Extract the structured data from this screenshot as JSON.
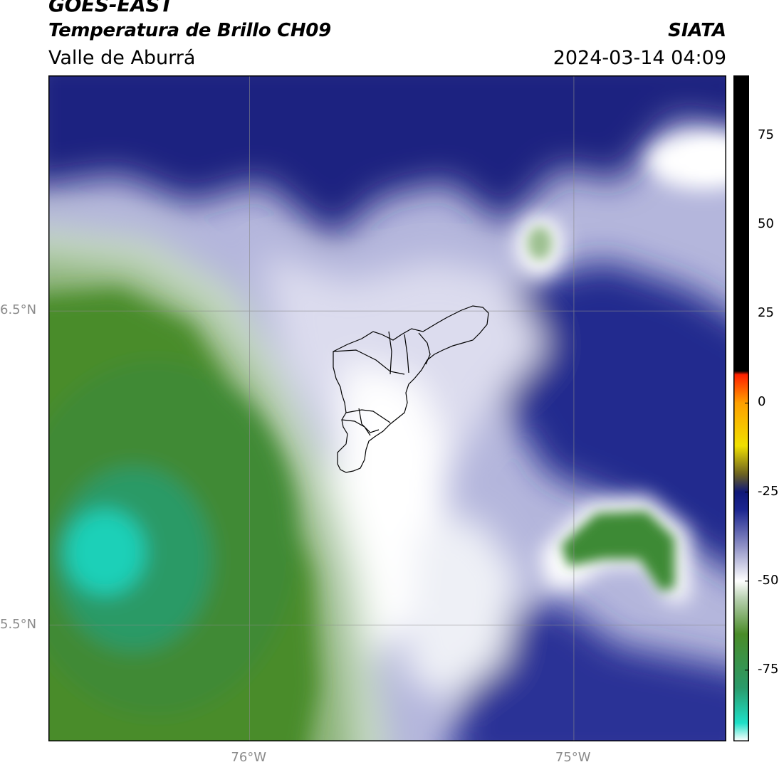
{
  "header": {
    "satellite": "GOES-EAST",
    "product": "Temperatura de Brillo CH09",
    "region": "Valle de Aburrá",
    "organization": "SIATA",
    "timestamp": "2024-03-14 04:09"
  },
  "map": {
    "gridlines": true,
    "lat_labels": [
      "6.5°N",
      "5.5°N"
    ],
    "lon_labels": [
      "76°W",
      "75°W"
    ],
    "lat_ticks": [
      6.5,
      5.5
    ],
    "lon_ticks": [
      -76,
      -75
    ],
    "lon_range": [
      -76.62,
      -74.53
    ],
    "lat_range": [
      5.13,
      7.25
    ],
    "boundary": "Valle de Aburrá municipalities outline"
  },
  "colorbar": {
    "tick_values": [
      75,
      50,
      25,
      0,
      -25,
      -50,
      -75
    ],
    "tick_labels": [
      "75",
      "50",
      "25",
      "0",
      "-25",
      "-50",
      "-75"
    ],
    "range": [
      -95,
      92
    ],
    "stops": [
      {
        "v": -95,
        "c": "#ffffff"
      },
      {
        "v": -90,
        "c": "#1ee0c8"
      },
      {
        "v": -80,
        "c": "#2a9a6a"
      },
      {
        "v": -65,
        "c": "#4a8c28"
      },
      {
        "v": -55,
        "c": "#b8d0b0"
      },
      {
        "v": -50,
        "c": "#ffffff"
      },
      {
        "v": -40,
        "c": "#8c8ec4"
      },
      {
        "v": -30,
        "c": "#1c2690"
      },
      {
        "v": -25,
        "c": "#101878"
      },
      {
        "v": -20,
        "c": "#6c6220"
      },
      {
        "v": -12,
        "c": "#f0e000"
      },
      {
        "v": 0,
        "c": "#ffa000"
      },
      {
        "v": 8,
        "c": "#ff2000"
      },
      {
        "v": 9,
        "c": "#000000"
      },
      {
        "v": 92,
        "c": "#000000"
      }
    ]
  }
}
